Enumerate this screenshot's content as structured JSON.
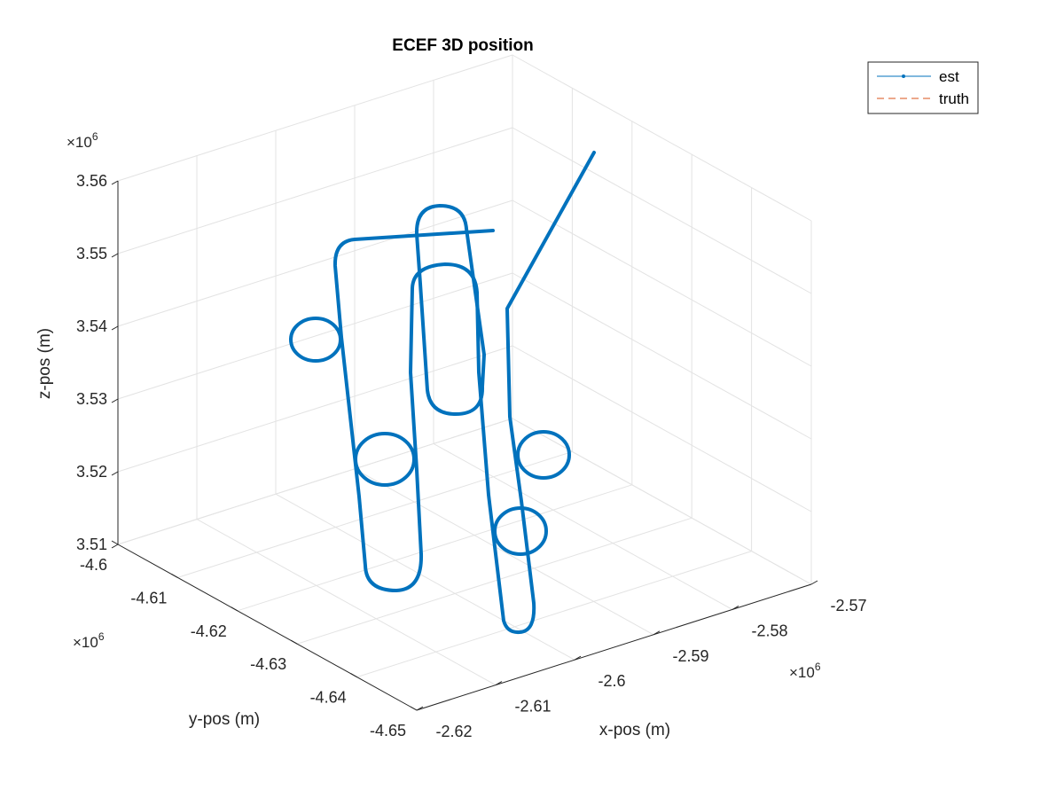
{
  "chart_data": {
    "type": "line",
    "title": "ECEF 3D position",
    "xlabel": "x-pos (m)",
    "ylabel": "y-pos (m)",
    "zlabel": "z-pos (m)",
    "x_ticks": [
      "-2.62",
      "-2.61",
      "-2.6",
      "-2.59",
      "-2.58",
      "-2.57"
    ],
    "y_ticks": [
      "-4.6",
      "-4.61",
      "-4.62",
      "-4.63",
      "-4.64",
      "-4.65"
    ],
    "z_ticks": [
      "3.51",
      "3.52",
      "3.53",
      "3.54",
      "3.55",
      "3.56"
    ],
    "x_exponent": "×10",
    "y_exponent": "×10",
    "z_exponent": "×10",
    "exponent_power": "6",
    "xlim": [
      -2620000,
      -2570000
    ],
    "ylim": [
      -4650000,
      -4600000
    ],
    "zlim": [
      3510000,
      3560000
    ],
    "grid": true,
    "legend_position": "top-right",
    "series": [
      {
        "name": "est",
        "color": "#0072BD",
        "style": "solid-dot"
      },
      {
        "name": "truth",
        "color": "#D95319",
        "style": "dashed"
      }
    ]
  }
}
